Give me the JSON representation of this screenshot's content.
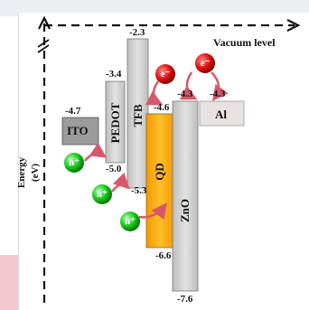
{
  "diagram": {
    "vacuum_label": "Vacuum level",
    "y_axis": {
      "label_line1": "Energy",
      "label_line2": "(eV)"
    },
    "layers": [
      {
        "name": "ITO",
        "top": "-4.7",
        "color": "#9a9a9a"
      },
      {
        "name": "PEDOT",
        "top": "-3.4",
        "bottom": "-5.0",
        "color": "#d6d6d6"
      },
      {
        "name": "TFB",
        "top": "-2.3",
        "bottom": "-5.3",
        "color": "#d6d6d6"
      },
      {
        "name": "QD",
        "top": "-4.6",
        "bottom": "-6.6",
        "color": "#f7a800"
      },
      {
        "name": "ZnO",
        "top": "-4.3",
        "bottom": "-7.6",
        "color": "#d6d6d6"
      },
      {
        "name": "Al",
        "top": "-4.3",
        "color": "#e6e0e0"
      }
    ],
    "carriers": {
      "electron": "e⁻",
      "hole": "h⁺"
    }
  }
}
